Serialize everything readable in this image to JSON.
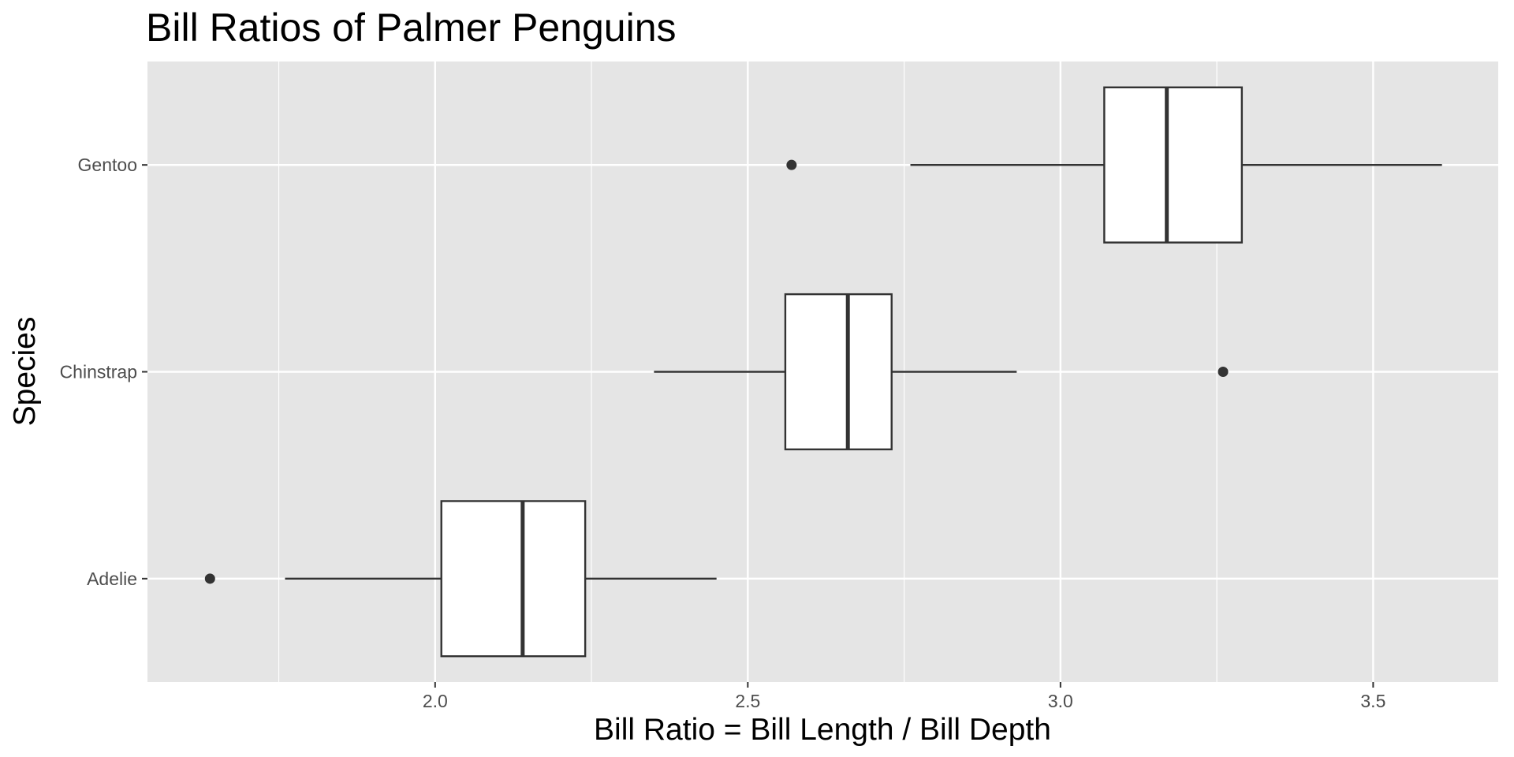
{
  "chart_data": {
    "type": "boxplot",
    "orientation": "horizontal",
    "title": "Bill Ratios of Palmer Penguins",
    "xlabel": "Bill Ratio = Bill Length / Bill Depth",
    "ylabel": "Species",
    "xlim": [
      1.54,
      3.7
    ],
    "x_ticks": [
      2.0,
      2.5,
      3.0,
      3.5
    ],
    "x_tick_labels": [
      "2.0",
      "2.5",
      "3.0",
      "3.5"
    ],
    "categories": [
      "Adelie",
      "Chinstrap",
      "Gentoo"
    ],
    "boxes": [
      {
        "category": "Adelie",
        "whisker_low": 1.76,
        "q1": 2.01,
        "median": 2.14,
        "q3": 2.24,
        "whisker_high": 2.45,
        "outliers": [
          1.64
        ]
      },
      {
        "category": "Chinstrap",
        "whisker_low": 2.35,
        "q1": 2.56,
        "median": 2.66,
        "q3": 2.73,
        "whisker_high": 2.93,
        "outliers": [
          3.26
        ]
      },
      {
        "category": "Gentoo",
        "whisker_low": 2.76,
        "q1": 3.07,
        "median": 3.17,
        "q3": 3.29,
        "whisker_high": 3.61,
        "outliers": [
          2.57
        ]
      }
    ],
    "grid": true,
    "legend": "none",
    "colors": {
      "panel_background": "#e5e5e5",
      "grid": "#ffffff",
      "box_fill": "#ffffff",
      "box_stroke": "#333333",
      "tick_text": "#4d4d4d"
    }
  }
}
